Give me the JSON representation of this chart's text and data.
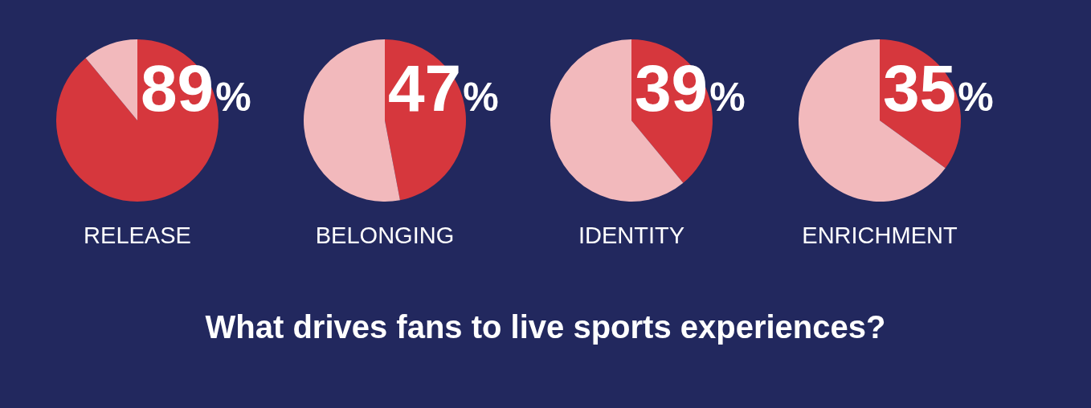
{
  "chart_data": [
    {
      "type": "pie",
      "xlabel": "RELEASE",
      "categories": [
        null,
        null
      ],
      "values": [
        89,
        11
      ],
      "colors": [
        "#d6373d",
        "#f2b9bc"
      ],
      "value_labels": [
        "89%",
        null
      ],
      "legend": false
    },
    {
      "type": "pie",
      "xlabel": "BELONGING",
      "categories": [
        null,
        null
      ],
      "values": [
        47,
        53
      ],
      "colors": [
        "#d6373d",
        "#f2b9bc"
      ],
      "value_labels": [
        "47%",
        null
      ],
      "legend": false
    },
    {
      "type": "pie",
      "xlabel": "IDENTITY",
      "categories": [
        null,
        null
      ],
      "values": [
        39,
        61
      ],
      "colors": [
        "#d6373d",
        "#f2b9bc"
      ],
      "value_labels": [
        "39%",
        null
      ],
      "legend": false
    },
    {
      "type": "pie",
      "xlabel": "ENRICHMENT",
      "categories": [
        null,
        null
      ],
      "values": [
        35,
        65
      ],
      "colors": [
        "#d6373d",
        "#f2b9bc"
      ],
      "value_labels": [
        "35%",
        null
      ],
      "legend": false
    },
    {
      "type": "other",
      "title": "What drives fans to live sports experiences?"
    }
  ]
}
